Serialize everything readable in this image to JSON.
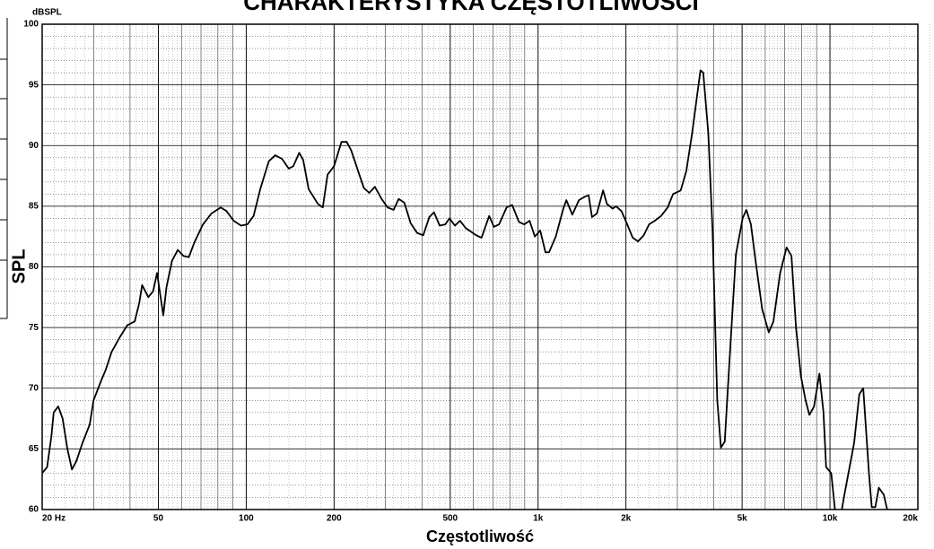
{
  "chart_data": {
    "type": "line",
    "title": "CHARAKTERYSTYKA CZĘSTOTLIWOŚCI",
    "y_unit": "dBSPL",
    "ylabel": "SPL",
    "xlabel": "Częstotliwość",
    "log_x": true,
    "grid": true,
    "color": "#000000",
    "xlim": [
      20,
      20000
    ],
    "ylim": [
      60,
      100
    ],
    "xticks": [
      {
        "value": 20,
        "label": "20 Hz"
      },
      50,
      100,
      200,
      500,
      {
        "value": 1000,
        "label": "1k"
      },
      {
        "value": 2000,
        "label": "2k"
      },
      {
        "value": 5000,
        "label": "5k"
      },
      {
        "value": 10000,
        "label": "10k"
      },
      {
        "value": 20000,
        "label": "20k"
      }
    ],
    "yticks": [
      60,
      65,
      70,
      75,
      80,
      85,
      90,
      95,
      100
    ],
    "x": [
      20,
      20.8,
      21.5,
      21.9,
      22.7,
      23.5,
      24.4,
      25.3,
      26.2,
      27.5,
      29.1,
      30,
      31.7,
      33,
      34.6,
      37.1,
      39.2,
      41.5,
      43,
      44,
      46.2,
      48,
      49.5,
      52,
      53.3,
      55.7,
      58.3,
      61,
      63.6,
      66.4,
      71.1,
      76,
      81.8,
      85.6,
      90.6,
      96,
      101,
      106,
      112,
      119.5,
      125.7,
      132.7,
      139.9,
      145,
      151.9,
      156.8,
      163.7,
      176,
      183,
      190,
      200,
      212,
      221,
      229,
      241,
      253,
      264,
      276,
      291,
      305,
      320,
      333,
      348,
      366,
      385,
      404,
      424,
      440,
      460,
      481,
      497,
      519,
      540,
      565,
      589,
      614,
      640,
      680,
      706,
      735,
      780,
      815,
      860,
      897,
      935,
      975,
      1017,
      1060,
      1090,
      1150,
      1220,
      1250,
      1310,
      1380,
      1450,
      1490,
      1530,
      1590,
      1670,
      1720,
      1800,
      1850,
      1930,
      2020,
      2110,
      2200,
      2300,
      2400,
      2510,
      2640,
      2780,
      2900,
      3080,
      3220,
      3370,
      3500,
      3600,
      3680,
      3830,
      3960,
      4110,
      4230,
      4360,
      4520,
      4760,
      5020,
      5170,
      5360,
      5560,
      5860,
      6170,
      6400,
      6750,
      7100,
      7380,
      7650,
      7950,
      8250,
      8500,
      8820,
      9200,
      9500,
      9700,
      10100,
      10400,
      10800,
      11200,
      12100,
      12600,
      13000,
      13600,
      13900,
      14300,
      14700,
      15300,
      15700
    ],
    "values": [
      63,
      63.5,
      66,
      68,
      68.5,
      67.5,
      65,
      63.3,
      64,
      65.5,
      67,
      69,
      70.5,
      71.5,
      73,
      74.3,
      75.2,
      75.5,
      77,
      78.5,
      77.5,
      78,
      79.5,
      76,
      78.3,
      80.5,
      81.4,
      80.9,
      80.8,
      82,
      83.5,
      84.4,
      84.9,
      84.6,
      83.8,
      83.4,
      83.5,
      84.2,
      86.5,
      88.7,
      89.2,
      88.9,
      88.1,
      88.3,
      89.4,
      88.8,
      86.4,
      85.2,
      84.9,
      87.6,
      88.3,
      90.3,
      90.3,
      89.6,
      88,
      86.5,
      86.1,
      86.6,
      85.6,
      84.9,
      84.7,
      85.6,
      85.3,
      83.6,
      82.8,
      82.6,
      84.1,
      84.5,
      83.4,
      83.5,
      84,
      83.4,
      83.8,
      83.2,
      82.9,
      82.6,
      82.4,
      84.2,
      83.3,
      83.5,
      84.9,
      85.1,
      83.7,
      83.5,
      83.8,
      82.5,
      83,
      81.2,
      81.2,
      82.5,
      84.8,
      85.5,
      84.3,
      85.5,
      85.8,
      85.9,
      84.1,
      84.4,
      86.3,
      85.2,
      84.8,
      85,
      84.6,
      83.5,
      82.4,
      82.1,
      82.6,
      83.5,
      83.8,
      84.2,
      84.9,
      86,
      86.3,
      87.9,
      91,
      94,
      96.2,
      96,
      91,
      83,
      69,
      65.1,
      65.6,
      72,
      81,
      84,
      84.7,
      83.5,
      80.5,
      76.5,
      74.6,
      75.5,
      79.5,
      81.6,
      80.9,
      75,
      71,
      69,
      67.8,
      68.5,
      71.2,
      68,
      63.5,
      63,
      60,
      59,
      61.2,
      65.5,
      69.5,
      70,
      63,
      60.2,
      60.2,
      61.8,
      61.2,
      60
    ]
  }
}
